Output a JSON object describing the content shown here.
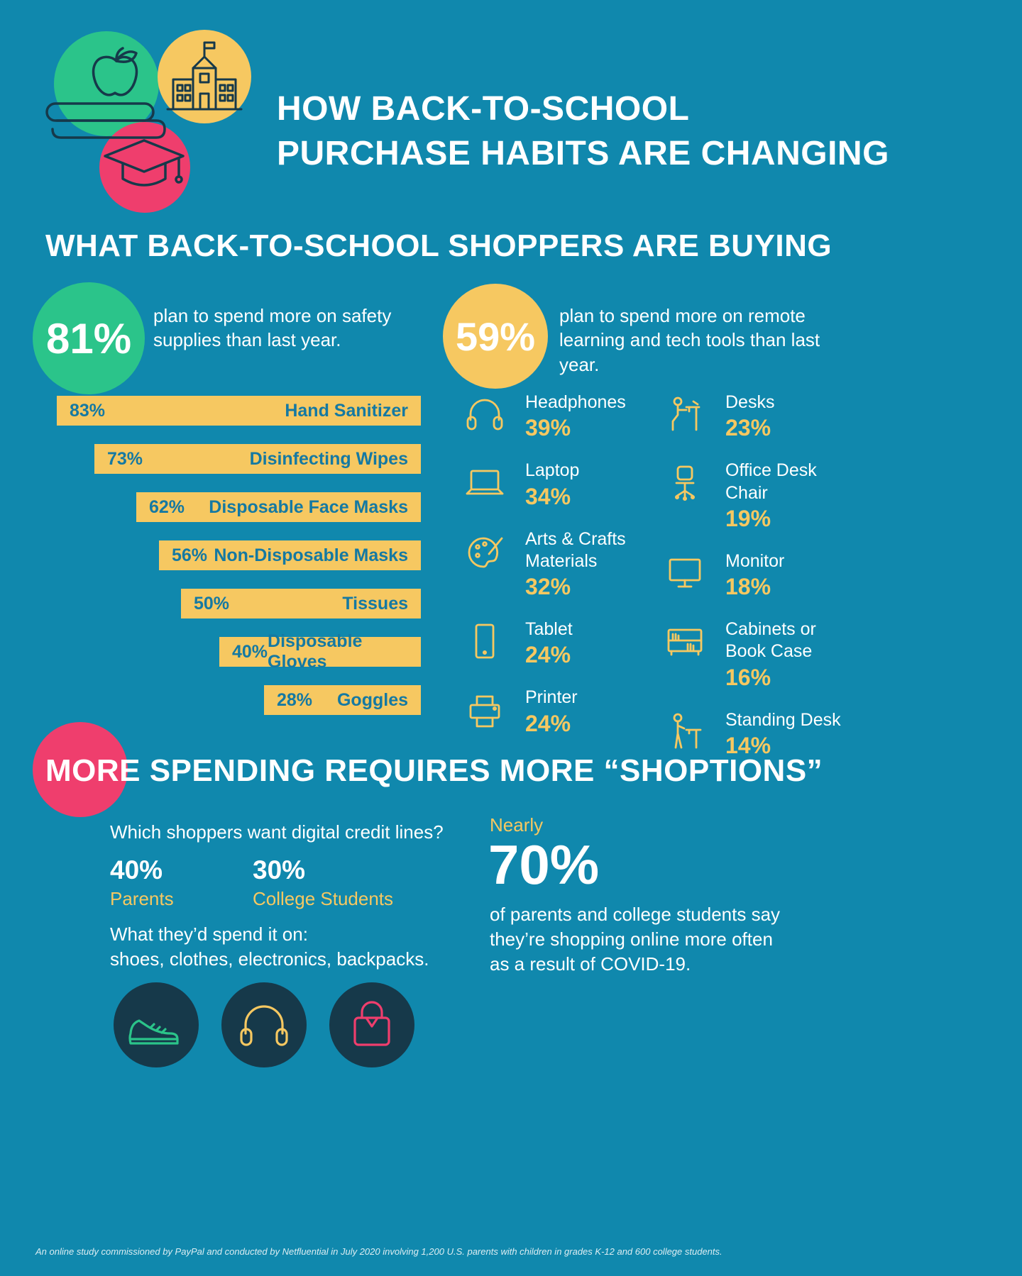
{
  "colors": {
    "bg": "#1088ad",
    "green": "#2bc48a",
    "yellow": "#f6c861",
    "pink": "#ef3e6d",
    "navy": "#16394a",
    "bar_text": "#1579a2"
  },
  "header": {
    "title_line1": "HOW BACK-TO-SCHOOL",
    "title_line2": "PURCHASE HABITS ARE CHANGING",
    "icons": [
      "apple-books-icon",
      "school-building-icon",
      "graduation-cap-icon"
    ]
  },
  "section1": {
    "heading": "WHAT BACK-TO-SCHOOL SHOPPERS ARE BUYING",
    "safety": {
      "stat": "81%",
      "stat_caption": "plan to spend more on safety supplies than last year.",
      "bars": [
        {
          "value": 83,
          "pct": "83%",
          "label": "Hand Sanitizer"
        },
        {
          "value": 73,
          "pct": "73%",
          "label": "Disinfecting Wipes"
        },
        {
          "value": 62,
          "pct": "62%",
          "label": "Disposable Face Masks"
        },
        {
          "value": 56,
          "pct": "56%",
          "label": "Non-Disposable Masks"
        },
        {
          "value": 50,
          "pct": "50%",
          "label": "Tissues"
        },
        {
          "value": 40,
          "pct": "40%",
          "label": "Disposable Gloves"
        },
        {
          "value": 28,
          "pct": "28%",
          "label": "Goggles"
        }
      ]
    },
    "tech": {
      "stat": "59%",
      "stat_caption": "plan to spend more on remote learning and tech tools than last year.",
      "col1": [
        {
          "icon": "headphones-icon",
          "label": "Headphones",
          "pct": "39%"
        },
        {
          "icon": "laptop-icon",
          "label": "Laptop",
          "pct": "34%"
        },
        {
          "icon": "palette-icon",
          "label": "Arts & Crafts Materials",
          "pct": "32%"
        },
        {
          "icon": "tablet-icon",
          "label": "Tablet",
          "pct": "24%"
        },
        {
          "icon": "printer-icon",
          "label": "Printer",
          "pct": "24%"
        }
      ],
      "col2": [
        {
          "icon": "desk-icon",
          "label": "Desks",
          "pct": "23%"
        },
        {
          "icon": "office-chair-icon",
          "label": "Office Desk Chair",
          "pct": "19%"
        },
        {
          "icon": "monitor-icon",
          "label": "Monitor",
          "pct": "18%"
        },
        {
          "icon": "bookcase-icon",
          "label": "Cabinets or Book Case",
          "pct": "16%"
        },
        {
          "icon": "standing-desk-icon",
          "label": "Standing Desk",
          "pct": "14%"
        }
      ]
    }
  },
  "section2": {
    "heading": "MORE SPENDING REQUIRES MORE “SHOPTIONS”",
    "question": "Which shoppers want digital credit lines?",
    "stats": [
      {
        "pct": "40%",
        "label": "Parents"
      },
      {
        "pct": "30%",
        "label": "College Students"
      }
    ],
    "spend_line1": "What they’d spend it on:",
    "spend_line2": "shoes, clothes, electronics, backpacks.",
    "nearly": "Nearly",
    "big_stat": "70%",
    "big_caption": "of parents and college students say they’re shopping online more often as a result of COVID-19.",
    "icons": [
      "sneaker-icon",
      "headphones-icon",
      "handbag-icon"
    ]
  },
  "footer": "An online study commissioned by PayPal and conducted by Netfluential in July 2020 involving 1,200 U.S. parents with children in grades K-12 and 600 college students.",
  "chart_data": [
    {
      "type": "bar",
      "title": "81% plan to spend more on safety supplies than last year",
      "categories": [
        "Hand Sanitizer",
        "Disinfecting Wipes",
        "Disposable Face Masks",
        "Non-Disposable Masks",
        "Tissues",
        "Disposable Gloves",
        "Goggles"
      ],
      "values": [
        83,
        73,
        62,
        56,
        50,
        40,
        28
      ],
      "unit": "%",
      "xlabel": "",
      "ylabel": "",
      "legend": false
    },
    {
      "type": "bar",
      "title": "59% plan to spend more on remote learning and tech tools than last year",
      "categories": [
        "Headphones",
        "Laptop",
        "Arts & Crafts Materials",
        "Tablet",
        "Printer",
        "Desks",
        "Office Desk Chair",
        "Monitor",
        "Cabinets or Book Case",
        "Standing Desk"
      ],
      "values": [
        39,
        34,
        32,
        24,
        24,
        23,
        19,
        18,
        16,
        14
      ],
      "unit": "%",
      "xlabel": "",
      "ylabel": "",
      "legend": false
    },
    {
      "type": "table",
      "title": "Which shoppers want digital credit lines?",
      "categories": [
        "Parents",
        "College Students",
        "Shopping online more often due to COVID-19"
      ],
      "values": [
        40,
        30,
        70
      ],
      "unit": "%"
    }
  ]
}
